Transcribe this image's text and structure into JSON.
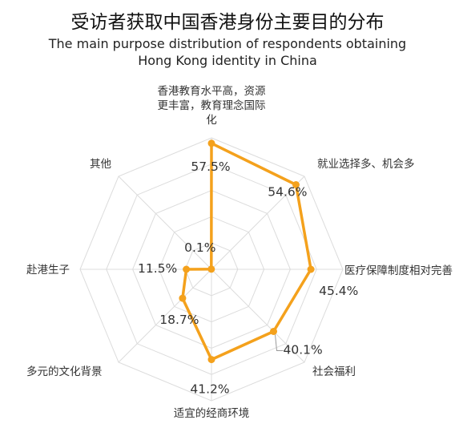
{
  "chart_data": {
    "type": "radar",
    "title": "受访者获取中国香港身份主要目的分布",
    "subtitle": "The main purpose distribution of respondents obtaining Hong Kong identity in China",
    "categories": [
      "香港教育水平高，资源更丰富，教育理念国际化",
      "就业选择多、机会多",
      "医疗保障制度相对完善",
      "社会福利",
      "适宜的经商环境",
      "多元的文化背景",
      "赴港生子",
      "其他"
    ],
    "values": [
      57.5,
      54.6,
      45.4,
      40.1,
      41.2,
      18.7,
      11.5,
      0.1
    ],
    "value_labels": [
      "57.5%",
      "54.6%",
      "45.4%",
      "40.1%",
      "41.2%",
      "18.7%",
      "11.5%",
      "0.1%"
    ],
    "rlim": [
      0,
      60
    ],
    "grid_rings": 5,
    "grid": true,
    "series_color": "#F4A11C",
    "grid_color": "#dcdcdc"
  }
}
